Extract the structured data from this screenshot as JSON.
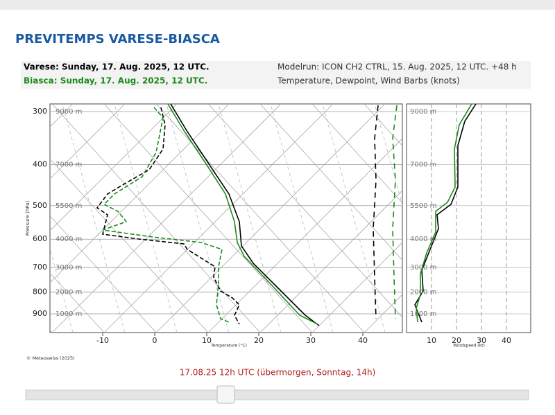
{
  "header": {
    "title": "PREVITEMPS VARESE-BIASCA"
  },
  "info": {
    "station1": "Varese: Sunday, 17. Aug. 2025, 12 UTC.",
    "station2": "Biasca: Sunday, 17. Aug. 2025, 12 UTC.",
    "modelrun": "Modelrun: ICON CH2 CTRL, 15. Aug. 2025, 12 UTC. +48 h",
    "content": "Temperature, Dewpoint, Wind Barbs (knots)"
  },
  "diagram": {
    "levels": [
      {
        "pressure": 300,
        "height": "9000 m"
      },
      {
        "pressure": 400,
        "height": "7000 m"
      },
      {
        "pressure": 500,
        "height": "5500 m"
      },
      {
        "pressure": 600,
        "height": "4000 m"
      },
      {
        "pressure": 700,
        "height": "3000 m"
      },
      {
        "pressure": 800,
        "height": "2000 m"
      },
      {
        "pressure": 900,
        "height": "1000 m"
      }
    ],
    "temperature_ticks": [
      -10,
      0,
      10,
      20,
      30,
      40
    ],
    "temperature_label": "Temperature (°C)",
    "pressure_label": "Pressure (hPa)",
    "wind_ticks": [
      10,
      20,
      30,
      40
    ],
    "wind_label": "Windspeed (kt)",
    "copyright": "© Meteoswiss (2025)"
  },
  "caption": "17.08.25 12h UTC (übermorgen, Sonntag, 14h)"
}
